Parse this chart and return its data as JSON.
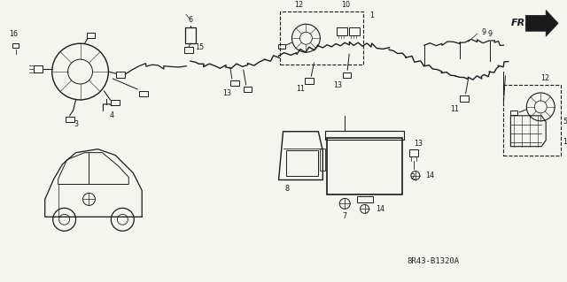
{
  "bg_color": "#f5f5f0",
  "line_color": "#1a1a1a",
  "part_number": "8R43-B1320A",
  "fig_width": 6.4,
  "fig_height": 3.19,
  "dpi": 100,
  "label_fontsize": 5.8,
  "label_color": "#111111"
}
